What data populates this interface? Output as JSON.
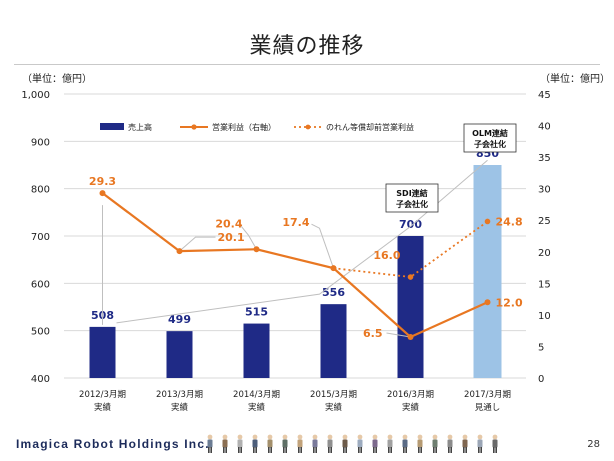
{
  "page": {
    "title": "業績の推移",
    "left_unit": "（単位：億円）",
    "right_unit": "（単位：億円）",
    "company": "Imagica Robot Holdings Inc.",
    "page_number": "28"
  },
  "chart_data": {
    "type": "bar",
    "categories": [
      [
        "2012/3月期",
        "実績"
      ],
      [
        "2013/3月期",
        "実績"
      ],
      [
        "2014/3月期",
        "実績"
      ],
      [
        "2015/3月期",
        "実績"
      ],
      [
        "2016/3月期",
        "実績"
      ],
      [
        "2017/3月期",
        "見通し"
      ]
    ],
    "left_axis": {
      "min": 400,
      "max": 1000,
      "ticks": [
        400,
        500,
        600,
        700,
        800,
        900,
        1000
      ],
      "tick_labels": [
        "400",
        "500",
        "600",
        "700",
        "800",
        "900",
        "1,000"
      ]
    },
    "right_axis": {
      "min": 0,
      "max": 45,
      "ticks": [
        0,
        5,
        10,
        15,
        20,
        25,
        30,
        35,
        40,
        45
      ]
    },
    "series": [
      {
        "name": "売上高",
        "kind": "bar",
        "axis": "left",
        "color": "#1f2a86",
        "forecast_color": "#9dc3e6",
        "values": [
          508,
          499,
          515,
          556,
          700,
          850
        ],
        "labels": [
          "508",
          "499",
          "515",
          "556",
          "700",
          "850"
        ]
      },
      {
        "name": "営業利益（右軸）",
        "kind": "line",
        "axis": "right",
        "color": "#e87722",
        "values": [
          29.3,
          20.1,
          20.4,
          17.4,
          6.5,
          12.0
        ],
        "labels": [
          "29.3",
          "20.1",
          "20.4",
          "17.4",
          "6.5",
          "12.0"
        ]
      },
      {
        "name": "のれん等償却前営業利益",
        "kind": "line-dotted",
        "axis": "right",
        "color": "#e87722",
        "points": [
          [
            3,
            17.4
          ],
          [
            4,
            16.0
          ],
          [
            5,
            24.8
          ]
        ],
        "labels": [
          "16.0",
          "24.8"
        ]
      }
    ],
    "annotations": [
      {
        "text": [
          "SDI連結",
          "子会社化"
        ],
        "category": 4
      },
      {
        "text": [
          "OLM連結",
          "子会社化"
        ],
        "category": 5
      }
    ],
    "grid": true,
    "legend": "top"
  }
}
